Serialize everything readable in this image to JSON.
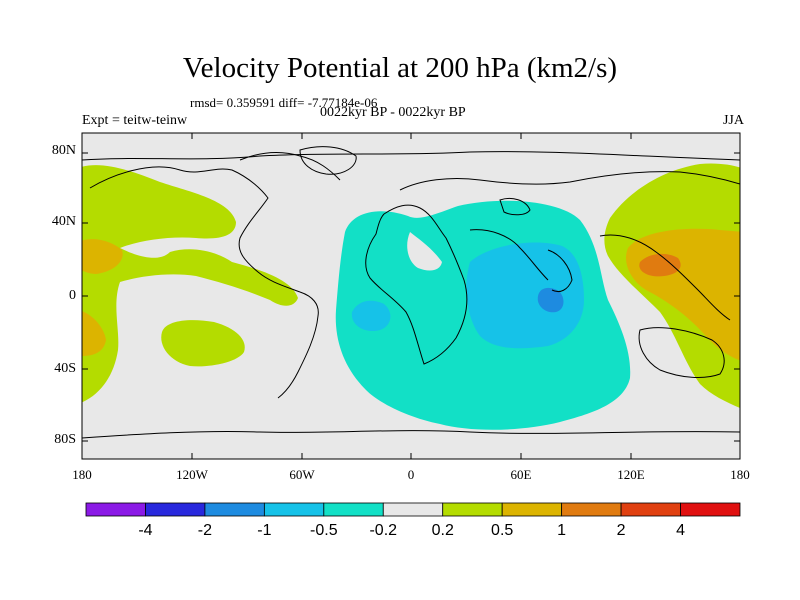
{
  "title": "Velocity Potential at 200 hPa (km2/s)",
  "stats": "rmsd= 0.359591 diff= -7.77184e-06",
  "left_label": "Expt = teitw-teinw",
  "center_label": "0022kyr BP - 0022kyr BP",
  "right_label": "JJA",
  "lat_labels": [
    "80N",
    "40N",
    "0",
    "40S",
    "80S"
  ],
  "lon_labels": [
    "180",
    "120W",
    "60W",
    "0",
    "60E",
    "120E",
    "180"
  ],
  "colorbar": {
    "labels": [
      "-4",
      "-2",
      "-1",
      "-0.5",
      "-0.2",
      "0.2",
      "0.5",
      "1",
      "2",
      "4"
    ],
    "colors": [
      "#8b1ae6",
      "#2828dd",
      "#1e8be0",
      "#16c2e8",
      "#12e0c6",
      "#e8e8e8",
      "#b4dc00",
      "#dcb400",
      "#e07b10",
      "#e04010",
      "#e01010"
    ]
  },
  "map_colors": {
    "background": "#e8e8e8",
    "pos_0_2": "#b4dc00",
    "pos_0_5": "#dcb400",
    "pos_1": "#e07b10",
    "neg_0_2": "#12e0c6",
    "neg_0_5": "#16c2e8",
    "neg_1": "#1e8be0"
  }
}
